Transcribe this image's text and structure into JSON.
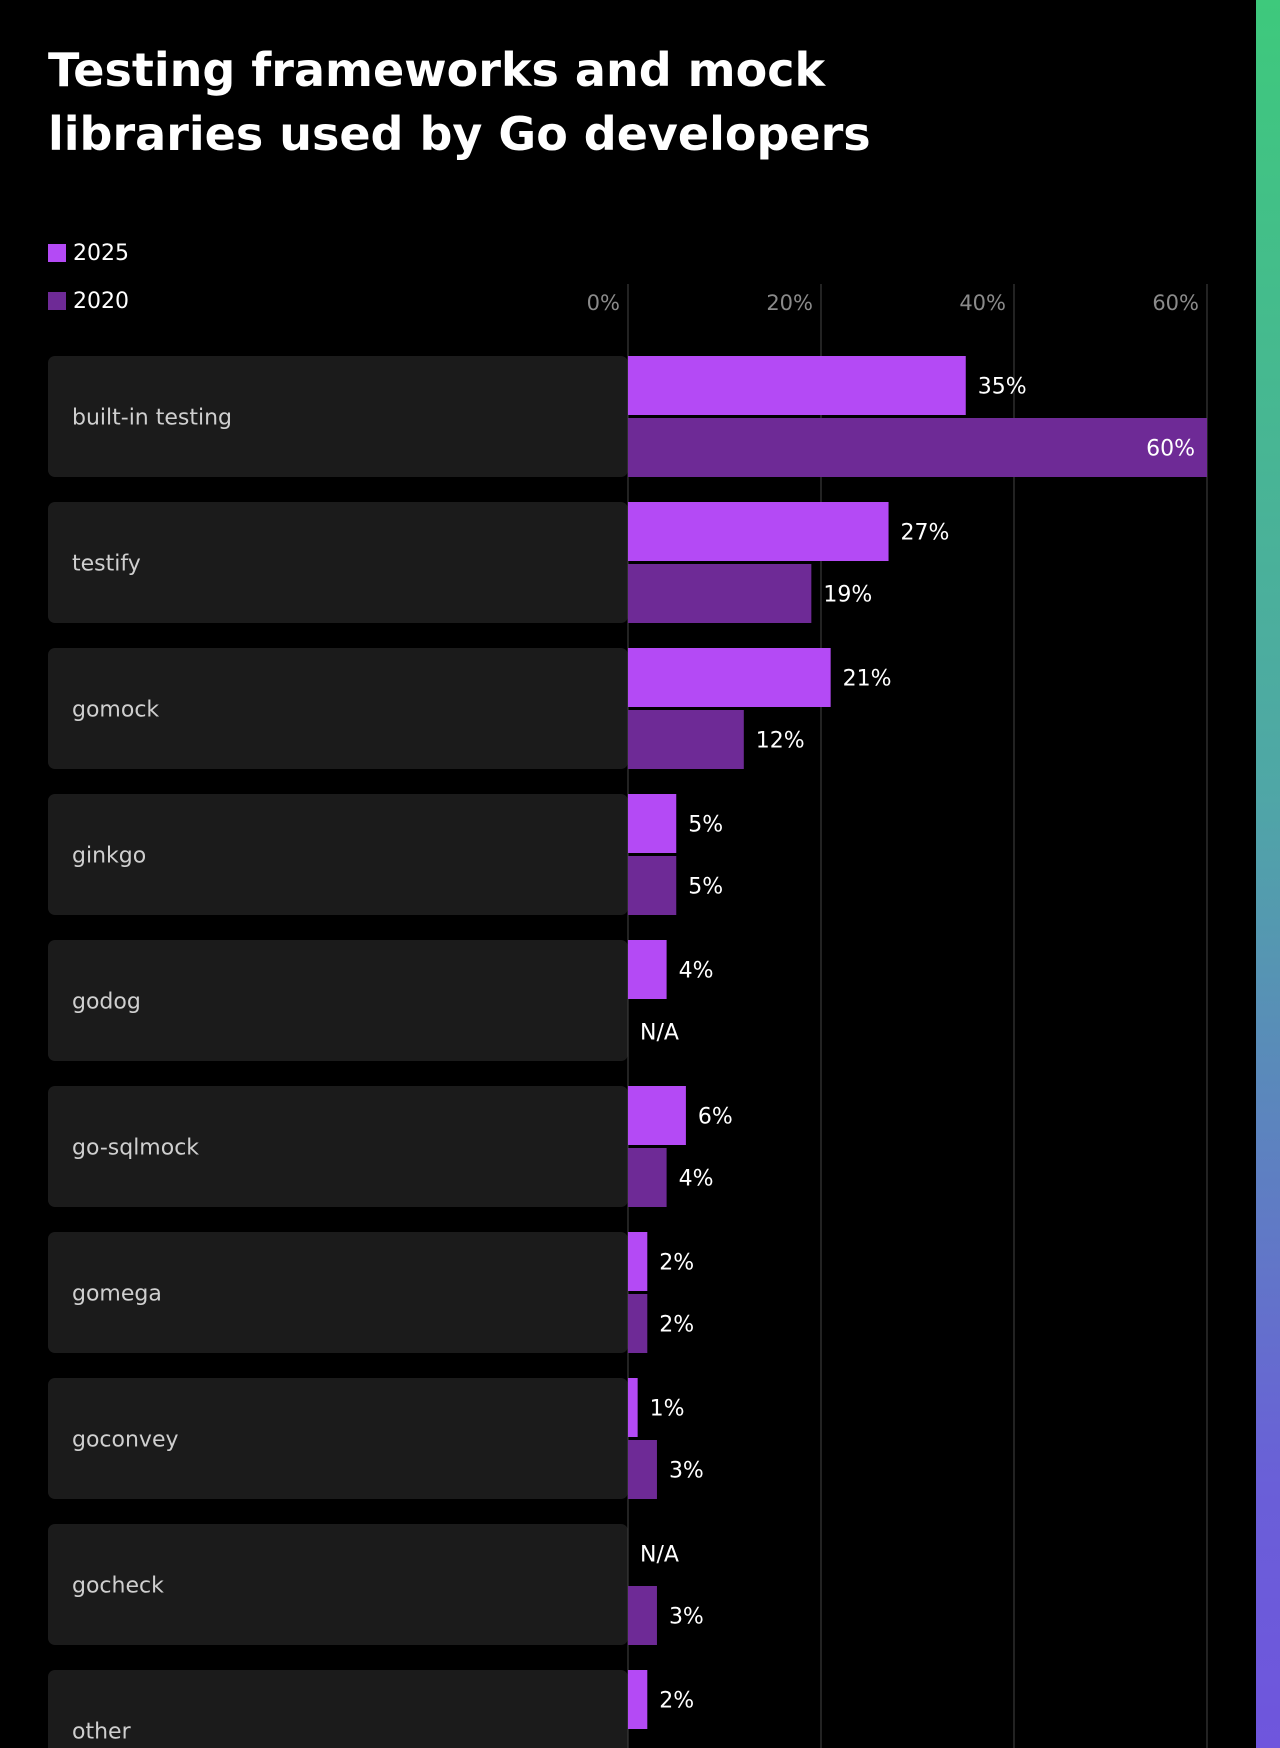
{
  "colors": {
    "series_2025": "#b44af5",
    "series_2020": "#6e2a96",
    "row_background": "#1b1b1b",
    "grid": "#3a3a3a"
  },
  "chart_data": {
    "type": "bar",
    "orientation": "horizontal",
    "title": "Testing frameworks and mock libraries used by Go developers",
    "categories": [
      "built-in testing",
      "testify",
      "gomock",
      "ginkgo",
      "godog",
      "go-sqlmock",
      "gomega",
      "goconvey",
      "gocheck",
      "other"
    ],
    "series": [
      {
        "name": "2025",
        "values": [
          35,
          27,
          21,
          5,
          4,
          6,
          2,
          1,
          null,
          2
        ]
      },
      {
        "name": "2020",
        "values": [
          60,
          19,
          12,
          5,
          null,
          4,
          2,
          3,
          3,
          null
        ]
      }
    ],
    "missing_label": "N/A",
    "xlim": [
      0,
      60
    ],
    "xticks": [
      0,
      20,
      40,
      60
    ],
    "tick_suffix": "%",
    "grid": true,
    "legend_position": "top-left"
  }
}
